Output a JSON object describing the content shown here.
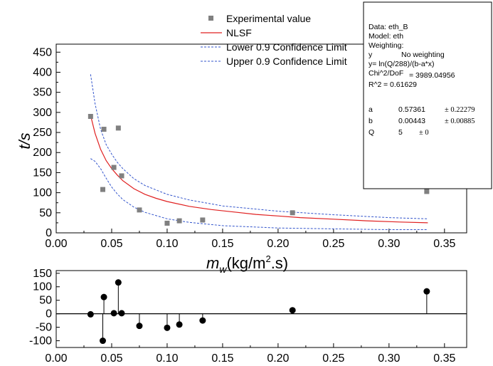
{
  "chart_data": [
    {
      "type": "scatter",
      "x_label_main": "m",
      "x_label_sub": "w",
      "x_label_rest": "(kg/m",
      "x_label_sup": "2",
      "x_label_tail": ".s)",
      "ylabel": "t/s",
      "xlim": [
        0.0,
        0.37
      ],
      "ylim": [
        0,
        470
      ],
      "x_ticks": [
        "0.00",
        "0.05",
        "0.10",
        "0.15",
        "0.20",
        "0.25",
        "0.30",
        "0.35"
      ],
      "y_ticks": [
        "0",
        "50",
        "100",
        "150",
        "200",
        "250",
        "300",
        "350",
        "400",
        "450"
      ],
      "series": [
        {
          "name": "Experimental value",
          "style": "square-marker",
          "color": "#808080",
          "x": [
            0.031,
            0.042,
            0.043,
            0.052,
            0.056,
            0.059,
            0.075,
            0.1,
            0.111,
            0.132,
            0.213,
            0.334
          ],
          "y": [
            290,
            108,
            258,
            163,
            261,
            142,
            57,
            24,
            30,
            32,
            50,
            103
          ]
        },
        {
          "name": "NLSF",
          "style": "solid-line",
          "color": "#e02020",
          "x": [
            0.031,
            0.035,
            0.04,
            0.045,
            0.05,
            0.055,
            0.06,
            0.07,
            0.08,
            0.09,
            0.1,
            0.12,
            0.14,
            0.16,
            0.18,
            0.2,
            0.22,
            0.25,
            0.28,
            0.31,
            0.335
          ],
          "y": [
            293,
            248,
            208,
            180,
            160,
            144,
            130,
            110,
            96,
            86,
            78,
            66,
            58,
            52,
            46,
            42,
            38,
            34,
            30,
            27,
            25
          ]
        },
        {
          "name": "Lower 0.9 Confidence Limit",
          "style": "dashed-line",
          "color": "#3355cc",
          "x": [
            0.031,
            0.035,
            0.04,
            0.045,
            0.05,
            0.055,
            0.06,
            0.07,
            0.08,
            0.1,
            0.12,
            0.15,
            0.2,
            0.25,
            0.3,
            0.335
          ],
          "y": [
            185,
            178,
            160,
            136,
            114,
            97,
            83,
            64,
            51,
            35,
            26,
            18,
            12,
            10,
            8,
            8
          ]
        },
        {
          "name": "Upper 0.9 Confidence Limit",
          "style": "dashed-line",
          "color": "#3355cc",
          "x": [
            0.031,
            0.035,
            0.04,
            0.045,
            0.05,
            0.055,
            0.06,
            0.07,
            0.08,
            0.1,
            0.12,
            0.15,
            0.2,
            0.25,
            0.3,
            0.335
          ],
          "y": [
            395,
            322,
            258,
            220,
            196,
            176,
            160,
            135,
            118,
            96,
            82,
            67,
            54,
            45,
            38,
            35
          ]
        }
      ],
      "legend_placement": "top-center",
      "info_box": {
        "lines": [
          "Data: eth_B",
          "Model: eth",
          "Weighting:",
          "y",
          "No weighting",
          "y= ln(Q/288)/(b-a*x)",
          "Chi^2/DoF",
          "= 3989.04956",
          "R^2",
          "= 0.61629"
        ],
        "params": [
          {
            "name": "a",
            "value": "0.57361",
            "error": "± 0.22279"
          },
          {
            "name": "b",
            "value": "0.00443",
            "error": "± 0.00885"
          },
          {
            "name": "Q",
            "value": "5",
            "error": "± 0"
          }
        ]
      }
    },
    {
      "type": "scatter",
      "title": "",
      "xlim": [
        0.0,
        0.37
      ],
      "ylim": [
        -125,
        160
      ],
      "x_ticks": [
        "0.00",
        "0.05",
        "0.10",
        "0.15",
        "0.20",
        "0.25",
        "0.30",
        "0.35"
      ],
      "y_ticks": [
        "150",
        "100",
        "50",
        "0",
        "-50",
        "-100"
      ],
      "y_tick_values": [
        150,
        100,
        50,
        0,
        -50,
        -100
      ],
      "series": [
        {
          "style": "stem-circle",
          "color": "#000000",
          "x": [
            0.031,
            0.042,
            0.043,
            0.052,
            0.056,
            0.059,
            0.075,
            0.1,
            0.111,
            0.132,
            0.213,
            0.334
          ],
          "y": [
            -2,
            -100,
            62,
            2,
            116,
            2,
            -45,
            -52,
            -40,
            -25,
            13,
            83
          ]
        }
      ]
    }
  ],
  "colors": {
    "marker_gray": "#808080",
    "fit_red": "#e02020",
    "ci_blue": "#3355cc"
  }
}
